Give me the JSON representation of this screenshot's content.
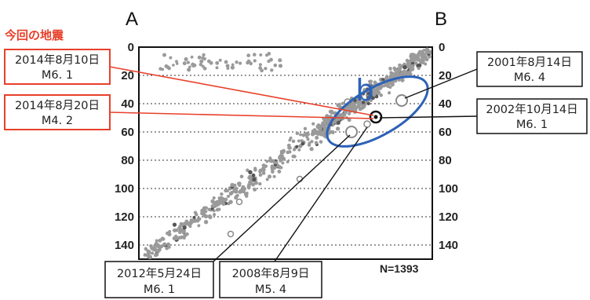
{
  "profile": {
    "end_left": "A",
    "end_right": "B",
    "heading": "今回の地震",
    "cluster_label": "b",
    "count_label": "N=1393",
    "left_ticks": [
      "0",
      "20",
      "40",
      "60",
      "80",
      "100",
      "120",
      "140"
    ],
    "right_ticks": [
      "0",
      "20",
      "40",
      "60",
      "80",
      "100",
      "120",
      "140"
    ],
    "depth_range": [
      0,
      150
    ]
  },
  "current_events": [
    {
      "date": "2014年8月10日",
      "magnitude": "M6. 1"
    },
    {
      "date": "2014年8月20日",
      "magnitude": "M4. 2"
    }
  ],
  "past_events": [
    {
      "date": "2001年8月14日",
      "magnitude": "M6. 4"
    },
    {
      "date": "2002年10月14日",
      "magnitude": "M6. 1"
    },
    {
      "date": "2012年5月24日",
      "magnitude": "M6. 1"
    },
    {
      "date": "2008年8月9日",
      "magnitude": "M5. 4"
    }
  ],
  "colors": {
    "current": "#e8402a",
    "cluster": "#2d62b8",
    "dots": "#9a9a9a"
  }
}
